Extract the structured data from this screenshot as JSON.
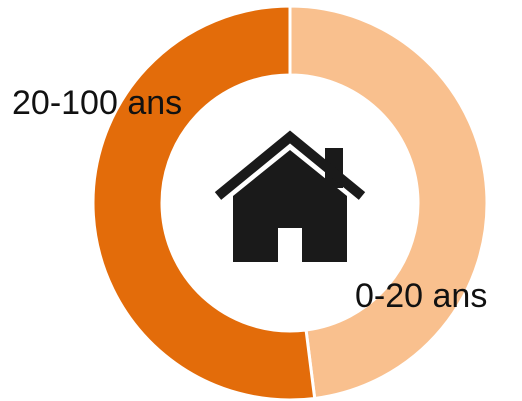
{
  "chart_data": {
    "type": "donut",
    "categories": [
      "0-20 ans",
      "20-100 ans"
    ],
    "values": [
      48,
      52
    ],
    "colors": [
      "#F9C08E",
      "#E36C0A"
    ]
  }
}
